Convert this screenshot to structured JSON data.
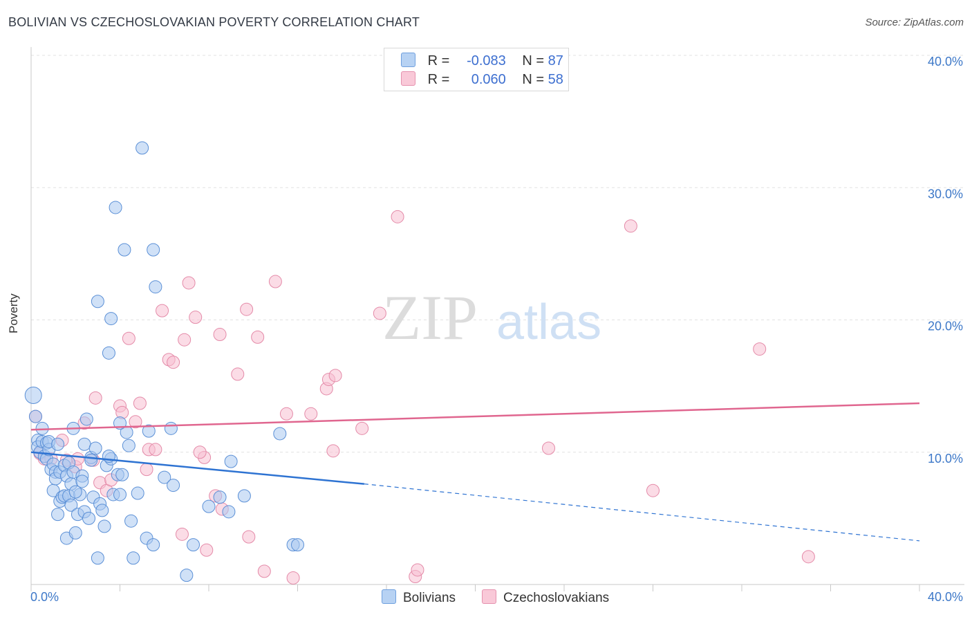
{
  "title": "BOLIVIAN VS CZECHOSLOVAKIAN POVERTY CORRELATION CHART",
  "source": "Source: ZipAtlas.com",
  "watermark": {
    "zip": "ZIP",
    "atlas": "atlas"
  },
  "legend": {
    "rows": [
      {
        "r_label": "R =",
        "r_value": "-0.083",
        "n_label": "N =",
        "n_value": "87"
      },
      {
        "r_label": "R =",
        "r_value": "0.060",
        "n_label": "N =",
        "n_value": "58"
      }
    ],
    "series_names": [
      "Bolivians",
      "Czechoslovakians"
    ]
  },
  "colors": {
    "bolivians_fill": "#a9c8f0",
    "bolivians_stroke": "#5a8fd6",
    "bolivians_line": "#2e73d2",
    "czech_fill": "#f7c0d2",
    "czech_stroke": "#e48aa8",
    "czech_line": "#e0668f",
    "axis_label": "#3d78c8",
    "grid": "#e2e2e2"
  },
  "chart_data": {
    "type": "scatter",
    "title": "BOLIVIAN VS CZECHOSLOVAKIAN POVERTY CORRELATION CHART",
    "xlabel": "",
    "ylabel": "Poverty",
    "xlim": [
      0,
      40
    ],
    "ylim": [
      0,
      40
    ],
    "x_tick_labels": [
      "0.0%",
      "40.0%"
    ],
    "y_tick_values": [
      10,
      20,
      30,
      40
    ],
    "y_tick_labels": [
      "10.0%",
      "20.0%",
      "30.0%",
      "40.0%"
    ],
    "grid": true,
    "legend_position": "top-center",
    "series": [
      {
        "name": "Bolivians",
        "r": -0.083,
        "n": 87,
        "trend": {
          "x0": 0,
          "y0": 10.0,
          "x1": 15.0,
          "y1": 7.6,
          "dash_to_x": 40,
          "dash_to_y": 3.3
        },
        "points": [
          [
            0.1,
            14.3
          ],
          [
            0.2,
            12.7
          ],
          [
            0.3,
            10.9
          ],
          [
            0.3,
            10.4
          ],
          [
            0.4,
            10.0
          ],
          [
            0.5,
            10.8
          ],
          [
            0.5,
            11.8
          ],
          [
            0.6,
            9.7
          ],
          [
            0.7,
            9.5
          ],
          [
            0.7,
            10.7
          ],
          [
            0.8,
            10.2
          ],
          [
            0.8,
            10.8
          ],
          [
            0.9,
            8.7
          ],
          [
            1.0,
            9.1
          ],
          [
            1.0,
            7.1
          ],
          [
            1.1,
            8.5
          ],
          [
            1.1,
            8.0
          ],
          [
            1.2,
            10.6
          ],
          [
            1.2,
            5.3
          ],
          [
            1.3,
            6.3
          ],
          [
            1.3,
            8.5
          ],
          [
            1.4,
            6.6
          ],
          [
            1.5,
            6.7
          ],
          [
            1.5,
            9.0
          ],
          [
            1.6,
            3.5
          ],
          [
            1.6,
            8.2
          ],
          [
            1.7,
            9.2
          ],
          [
            1.7,
            6.7
          ],
          [
            1.8,
            7.6
          ],
          [
            1.8,
            6.0
          ],
          [
            1.9,
            8.5
          ],
          [
            2.0,
            3.9
          ],
          [
            2.1,
            5.3
          ],
          [
            2.2,
            6.8
          ],
          [
            2.3,
            8.2
          ],
          [
            2.3,
            7.8
          ],
          [
            2.4,
            10.6
          ],
          [
            2.4,
            5.5
          ],
          [
            2.5,
            12.5
          ],
          [
            2.6,
            5.0
          ],
          [
            2.7,
            9.6
          ],
          [
            2.7,
            9.4
          ],
          [
            2.8,
            6.6
          ],
          [
            2.9,
            10.3
          ],
          [
            3.0,
            21.4
          ],
          [
            3.0,
            2.0
          ],
          [
            3.1,
            6.1
          ],
          [
            3.2,
            5.6
          ],
          [
            3.3,
            4.4
          ],
          [
            3.4,
            9.0
          ],
          [
            3.5,
            17.5
          ],
          [
            3.6,
            9.5
          ],
          [
            3.6,
            20.1
          ],
          [
            3.7,
            6.8
          ],
          [
            3.8,
            28.5
          ],
          [
            3.9,
            8.3
          ],
          [
            4.0,
            6.8
          ],
          [
            4.1,
            8.3
          ],
          [
            4.2,
            25.3
          ],
          [
            4.3,
            11.5
          ],
          [
            4.4,
            10.5
          ],
          [
            4.5,
            4.8
          ],
          [
            4.6,
            2.0
          ],
          [
            4.8,
            6.9
          ],
          [
            5.0,
            33.0
          ],
          [
            5.2,
            3.5
          ],
          [
            5.3,
            11.6
          ],
          [
            5.5,
            25.3
          ],
          [
            5.6,
            22.5
          ],
          [
            6.0,
            8.1
          ],
          [
            6.3,
            11.8
          ],
          [
            6.4,
            7.5
          ],
          [
            7.0,
            0.7
          ],
          [
            7.3,
            3.0
          ],
          [
            8.0,
            5.9
          ],
          [
            8.5,
            6.6
          ],
          [
            8.9,
            5.5
          ],
          [
            9.0,
            9.3
          ],
          [
            9.6,
            6.7
          ],
          [
            11.2,
            11.4
          ],
          [
            11.8,
            3.0
          ],
          [
            12.0,
            3.0
          ],
          [
            3.5,
            9.7
          ],
          [
            1.9,
            11.8
          ],
          [
            2.0,
            7.0
          ],
          [
            5.5,
            3.0
          ],
          [
            4.0,
            12.2
          ]
        ]
      },
      {
        "name": "Czechoslovakians",
        "r": 0.06,
        "n": 58,
        "trend": {
          "x0": 0,
          "y0": 11.7,
          "x1": 40,
          "y1": 13.7
        },
        "points": [
          [
            0.2,
            12.7
          ],
          [
            0.4,
            9.9
          ],
          [
            0.6,
            9.5
          ],
          [
            0.9,
            9.5
          ],
          [
            1.4,
            10.9
          ],
          [
            1.6,
            9.4
          ],
          [
            2.0,
            8.9
          ],
          [
            2.1,
            9.5
          ],
          [
            2.4,
            12.2
          ],
          [
            2.8,
            9.4
          ],
          [
            2.9,
            14.1
          ],
          [
            3.1,
            7.7
          ],
          [
            3.4,
            7.1
          ],
          [
            3.6,
            7.9
          ],
          [
            4.0,
            13.5
          ],
          [
            4.1,
            13.0
          ],
          [
            4.4,
            18.6
          ],
          [
            4.7,
            12.3
          ],
          [
            4.9,
            13.7
          ],
          [
            5.2,
            8.7
          ],
          [
            5.3,
            10.2
          ],
          [
            5.6,
            10.2
          ],
          [
            5.9,
            20.7
          ],
          [
            6.2,
            17.0
          ],
          [
            6.4,
            16.8
          ],
          [
            6.8,
            3.8
          ],
          [
            6.9,
            18.5
          ],
          [
            7.1,
            22.8
          ],
          [
            7.4,
            20.2
          ],
          [
            7.8,
            9.6
          ],
          [
            7.9,
            2.6
          ],
          [
            8.3,
            6.7
          ],
          [
            8.6,
            5.7
          ],
          [
            8.5,
            18.9
          ],
          [
            9.3,
            15.9
          ],
          [
            9.7,
            20.8
          ],
          [
            9.8,
            3.6
          ],
          [
            10.2,
            18.7
          ],
          [
            10.5,
            1.0
          ],
          [
            11.0,
            22.9
          ],
          [
            11.5,
            12.9
          ],
          [
            11.8,
            0.5
          ],
          [
            12.6,
            12.9
          ],
          [
            13.3,
            14.8
          ],
          [
            13.4,
            15.5
          ],
          [
            13.6,
            10.1
          ],
          [
            13.7,
            15.8
          ],
          [
            14.9,
            11.8
          ],
          [
            15.7,
            20.5
          ],
          [
            16.5,
            27.8
          ],
          [
            17.3,
            0.6
          ],
          [
            17.4,
            1.1
          ],
          [
            23.3,
            10.3
          ],
          [
            27.0,
            27.1
          ],
          [
            28.0,
            7.1
          ],
          [
            32.8,
            17.8
          ],
          [
            35.0,
            2.1
          ],
          [
            7.6,
            10.0
          ]
        ]
      }
    ]
  }
}
